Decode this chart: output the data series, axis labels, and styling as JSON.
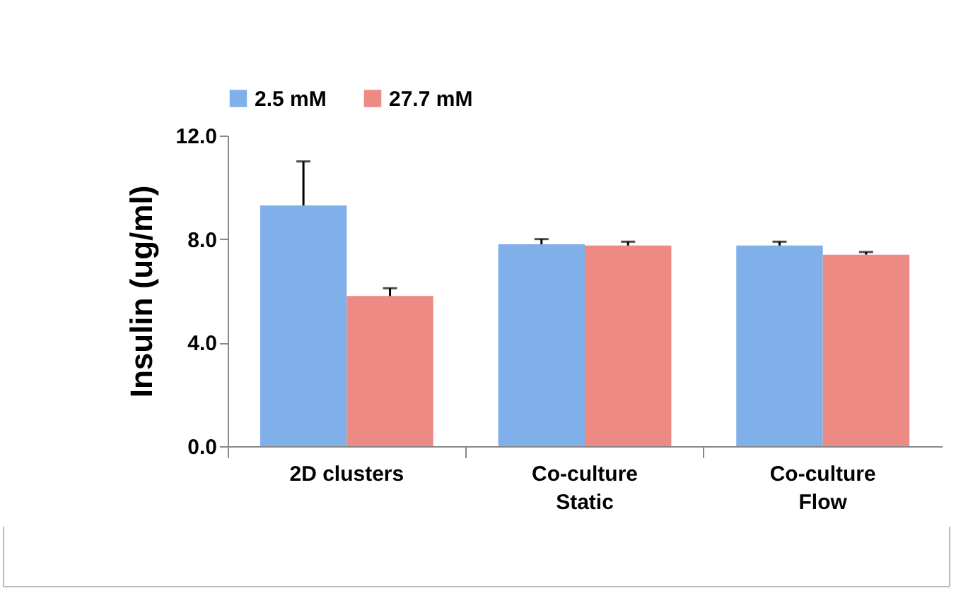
{
  "chart_data": {
    "type": "bar",
    "ylabel": "Insulin (ug/ml)",
    "categories": [
      "2D clusters",
      "Co-culture\nStatic",
      "Co-culture\nFlow"
    ],
    "series": [
      {
        "name": "2.5 mM",
        "color": "#80b0ea",
        "values": [
          9.3,
          7.8,
          7.75
        ],
        "errors": [
          [
            9.3,
            11.0
          ],
          [
            7.8,
            8.0
          ],
          [
            7.75,
            7.9
          ]
        ]
      },
      {
        "name": "27.7 mM",
        "color": "#ee8a84",
        "values": [
          5.8,
          7.75,
          7.4
        ],
        "errors": [
          [
            5.8,
            6.1
          ],
          [
            7.75,
            7.9
          ],
          [
            7.4,
            7.5
          ]
        ]
      }
    ],
    "ylim": [
      0,
      12
    ],
    "yticks": [
      {
        "value": 0,
        "label": "0.0"
      },
      {
        "value": 4,
        "label": "4.0"
      },
      {
        "value": 8,
        "label": "8.0"
      },
      {
        "value": 12,
        "label": "12.0"
      }
    ],
    "grid": false,
    "legend": "top"
  }
}
